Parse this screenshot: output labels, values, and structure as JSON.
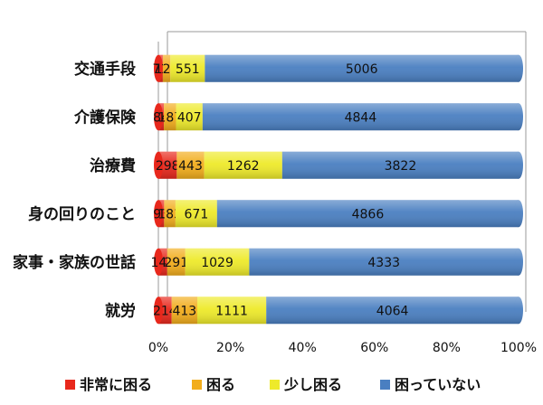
{
  "chart_data": {
    "type": "bar",
    "orientation": "horizontal",
    "stacked": "percent",
    "categories": [
      "交通手段",
      "介護保険",
      "治療費",
      "身の回りのこと",
      "家事・家族の世話",
      "就労"
    ],
    "series": [
      {
        "name": "非常に困る",
        "color": "#e8281c",
        "values": [
          71,
          84,
          298,
          93,
          142,
          214
        ]
      },
      {
        "name": "困る",
        "color": "#f2ad1c",
        "values": [
          120,
          187,
          443,
          183,
          291,
          413
        ]
      },
      {
        "name": "少し困る",
        "color": "#eeea2a",
        "values": [
          551,
          407,
          1262,
          671,
          1029,
          1111
        ]
      },
      {
        "name": "困っていない",
        "color": "#4a7fc1",
        "values": [
          5006,
          4844,
          3822,
          4866,
          4333,
          4064
        ]
      }
    ],
    "xticks": [
      "0%",
      "20%",
      "40%",
      "60%",
      "80%",
      "100%"
    ],
    "xlim": [
      0,
      100
    ],
    "legend_position": "bottom",
    "grid": false
  }
}
